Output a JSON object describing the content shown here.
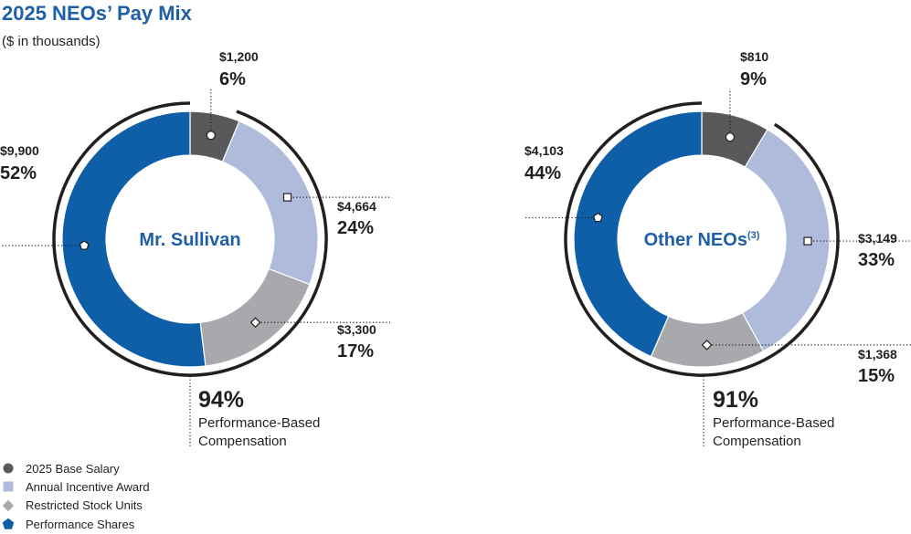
{
  "title": "2025 NEOs’ Pay Mix",
  "subtitle": "($ in thousands)",
  "colors": {
    "base_salary": "#58595b",
    "annual_incentive": "#aebbdb",
    "rsu": "#a7a9ac",
    "performance_shares": "#0e5fa8",
    "title": "#1f5fa6"
  },
  "legend": [
    {
      "label": "2025 Base Salary",
      "marker": "circle",
      "color": "#58595b"
    },
    {
      "label": "Annual Incentive Award",
      "marker": "square",
      "color": "#aebbdb"
    },
    {
      "label": "Restricted Stock Units",
      "marker": "diamond",
      "color": "#a7a9ac"
    },
    {
      "label": "Performance Shares",
      "marker": "pentagon",
      "color": "#0e5fa8"
    }
  ],
  "chart_data": [
    {
      "type": "pie",
      "center_label": "Mr. Sullivan",
      "center_superscript": "",
      "categories": [
        "2025 Base Salary",
        "Annual Incentive Award",
        "Restricted Stock Units",
        "Performance Shares"
      ],
      "values": [
        1200,
        4664,
        3300,
        9900
      ],
      "value_labels": [
        "$1,200",
        "$4,664",
        "$3,300",
        "$9,900"
      ],
      "percent_labels": [
        "6%",
        "24%",
        "17%",
        "52%"
      ],
      "performance_based_percent": "94%",
      "performance_based_label": [
        "Performance-Based",
        "Compensation"
      ]
    },
    {
      "type": "pie",
      "center_label": "Other NEOs",
      "center_superscript": "(3)",
      "categories": [
        "2025 Base Salary",
        "Annual Incentive Award",
        "Restricted Stock Units",
        "Performance Shares"
      ],
      "values": [
        810,
        3149,
        1368,
        4103
      ],
      "value_labels": [
        "$810",
        "$3,149",
        "$1,368",
        "$4,103"
      ],
      "percent_labels": [
        "9%",
        "33%",
        "15%",
        "44%"
      ],
      "performance_based_percent": "91%",
      "performance_based_label": [
        "Performance-Based",
        "Compensation"
      ]
    }
  ]
}
